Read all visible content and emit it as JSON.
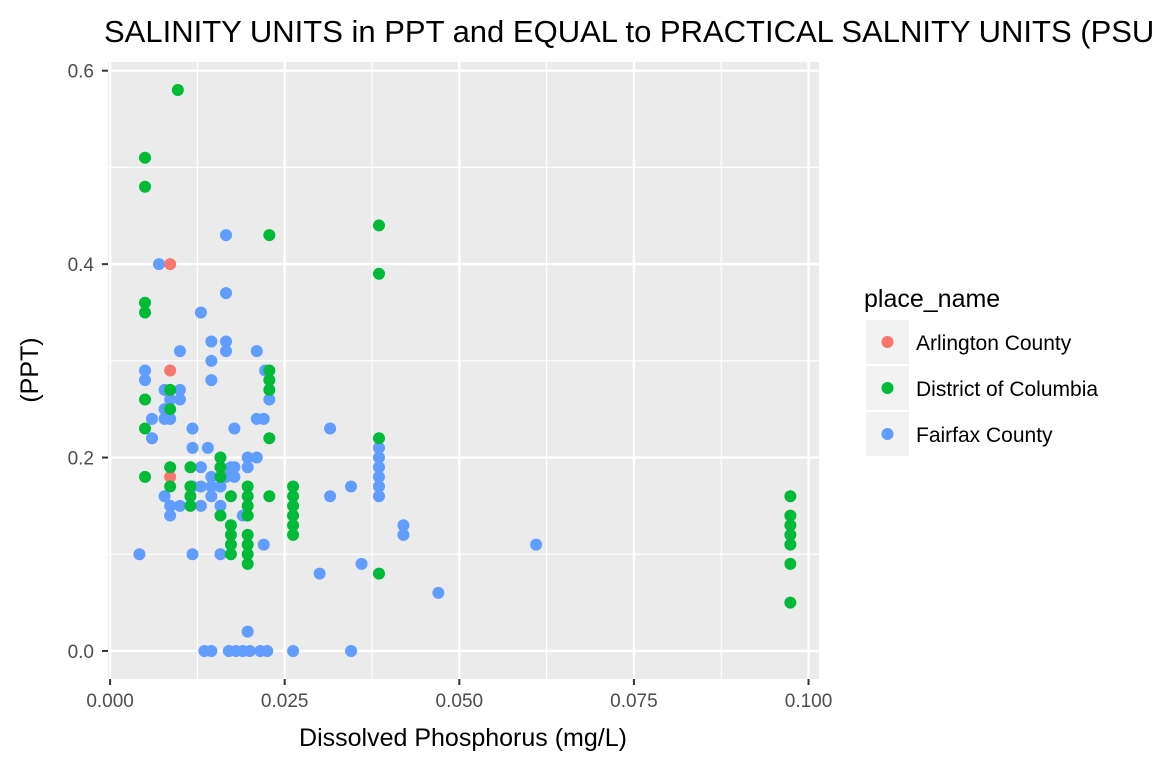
{
  "chart_data": {
    "type": "scatter",
    "title": "SALINITY UNITS in PPT and EQUAL to PRACTICAL SALNITY UNITS (PSU)",
    "xlabel": "Dissolved Phosphorus (mg/L)",
    "ylabel": "(PPT)",
    "xlim": [
      -0.0003,
      0.1015
    ],
    "ylim": [
      -0.029,
      0.609
    ],
    "x_ticks": [
      0,
      0.025,
      0.05,
      0.075,
      0.1
    ],
    "x_tick_labels": [
      "0.000",
      "0.025",
      "0.050",
      "0.075",
      "0.100"
    ],
    "y_ticks": [
      0,
      0.2,
      0.4,
      0.6
    ],
    "y_tick_labels": [
      "0.0",
      "0.2",
      "0.4",
      "0.6"
    ],
    "grid": true,
    "legend": {
      "title": "place_name",
      "position": "right"
    },
    "series": [
      {
        "name": "Arlington County",
        "color": "#F8766D",
        "points": [
          [
            0.0086,
            0.4
          ],
          [
            0.0086,
            0.29
          ],
          [
            0.0086,
            0.18
          ]
        ]
      },
      {
        "name": "District of Columbia",
        "color": "#00BA38",
        "points": [
          [
            0.0097,
            0.58
          ],
          [
            0.005,
            0.51
          ],
          [
            0.005,
            0.48
          ],
          [
            0.005,
            0.36
          ],
          [
            0.005,
            0.35
          ],
          [
            0.005,
            0.26
          ],
          [
            0.005,
            0.23
          ],
          [
            0.005,
            0.18
          ],
          [
            0.0086,
            0.27
          ],
          [
            0.0086,
            0.25
          ],
          [
            0.0086,
            0.19
          ],
          [
            0.0086,
            0.17
          ],
          [
            0.0115,
            0.19
          ],
          [
            0.0115,
            0.17
          ],
          [
            0.0115,
            0.16
          ],
          [
            0.0115,
            0.15
          ],
          [
            0.0158,
            0.2
          ],
          [
            0.0158,
            0.19
          ],
          [
            0.0158,
            0.18
          ],
          [
            0.0158,
            0.14
          ],
          [
            0.0173,
            0.16
          ],
          [
            0.0173,
            0.13
          ],
          [
            0.0173,
            0.12
          ],
          [
            0.0173,
            0.11
          ],
          [
            0.0173,
            0.1
          ],
          [
            0.0197,
            0.17
          ],
          [
            0.0197,
            0.16
          ],
          [
            0.0197,
            0.15
          ],
          [
            0.0197,
            0.14
          ],
          [
            0.0197,
            0.12
          ],
          [
            0.0197,
            0.11
          ],
          [
            0.0197,
            0.1
          ],
          [
            0.0197,
            0.09
          ],
          [
            0.0228,
            0.43
          ],
          [
            0.0228,
            0.29
          ],
          [
            0.0228,
            0.28
          ],
          [
            0.0228,
            0.27
          ],
          [
            0.0228,
            0.22
          ],
          [
            0.0228,
            0.16
          ],
          [
            0.0262,
            0.17
          ],
          [
            0.0262,
            0.16
          ],
          [
            0.0262,
            0.15
          ],
          [
            0.0262,
            0.14
          ],
          [
            0.0262,
            0.13
          ],
          [
            0.0262,
            0.12
          ],
          [
            0.0385,
            0.44
          ],
          [
            0.0385,
            0.39
          ],
          [
            0.0385,
            0.22
          ],
          [
            0.0385,
            0.08
          ],
          [
            0.0974,
            0.16
          ],
          [
            0.0974,
            0.14
          ],
          [
            0.0974,
            0.13
          ],
          [
            0.0974,
            0.12
          ],
          [
            0.0974,
            0.11
          ],
          [
            0.0974,
            0.09
          ],
          [
            0.0974,
            0.05
          ]
        ]
      },
      {
        "name": "Fairfax County",
        "color": "#619CFF",
        "points": [
          [
            0.0042,
            0.1
          ],
          [
            0.005,
            0.29
          ],
          [
            0.005,
            0.28
          ],
          [
            0.006,
            0.24
          ],
          [
            0.006,
            0.22
          ],
          [
            0.007,
            0.4
          ],
          [
            0.0078,
            0.27
          ],
          [
            0.0078,
            0.25
          ],
          [
            0.0078,
            0.24
          ],
          [
            0.0078,
            0.16
          ],
          [
            0.0086,
            0.26
          ],
          [
            0.0086,
            0.24
          ],
          [
            0.0086,
            0.15
          ],
          [
            0.0086,
            0.14
          ],
          [
            0.01,
            0.31
          ],
          [
            0.01,
            0.27
          ],
          [
            0.01,
            0.26
          ],
          [
            0.01,
            0.15
          ],
          [
            0.0118,
            0.23
          ],
          [
            0.0118,
            0.21
          ],
          [
            0.0118,
            0.17
          ],
          [
            0.0118,
            0.1
          ],
          [
            0.013,
            0.35
          ],
          [
            0.013,
            0.19
          ],
          [
            0.013,
            0.17
          ],
          [
            0.013,
            0.15
          ],
          [
            0.0135,
            0.0
          ],
          [
            0.014,
            0.21
          ],
          [
            0.0145,
            0.32
          ],
          [
            0.0145,
            0.3
          ],
          [
            0.0145,
            0.28
          ],
          [
            0.0145,
            0.18
          ],
          [
            0.0145,
            0.17
          ],
          [
            0.0145,
            0.16
          ],
          [
            0.0145,
            0.0
          ],
          [
            0.0158,
            0.17
          ],
          [
            0.0158,
            0.15
          ],
          [
            0.0158,
            0.1
          ],
          [
            0.0166,
            0.43
          ],
          [
            0.0166,
            0.37
          ],
          [
            0.0166,
            0.32
          ],
          [
            0.0166,
            0.31
          ],
          [
            0.0166,
            0.18
          ],
          [
            0.0173,
            0.19
          ],
          [
            0.0178,
            0.23
          ],
          [
            0.0178,
            0.19
          ],
          [
            0.0178,
            0.18
          ],
          [
            0.017,
            0.0
          ],
          [
            0.018,
            0.0
          ],
          [
            0.019,
            0.0
          ],
          [
            0.02,
            0.0
          ],
          [
            0.0215,
            0.0
          ],
          [
            0.0225,
            0.0
          ],
          [
            0.019,
            0.14
          ],
          [
            0.0197,
            0.2
          ],
          [
            0.0197,
            0.19
          ],
          [
            0.0197,
            0.02
          ],
          [
            0.021,
            0.31
          ],
          [
            0.021,
            0.24
          ],
          [
            0.021,
            0.2
          ],
          [
            0.022,
            0.24
          ],
          [
            0.022,
            0.11
          ],
          [
            0.0228,
            0.26
          ],
          [
            0.0222,
            0.29
          ],
          [
            0.0262,
            0.0
          ],
          [
            0.03,
            0.08
          ],
          [
            0.0315,
            0.23
          ],
          [
            0.0315,
            0.16
          ],
          [
            0.0345,
            0.17
          ],
          [
            0.0345,
            0.0
          ],
          [
            0.036,
            0.09
          ],
          [
            0.0385,
            0.21
          ],
          [
            0.0385,
            0.2
          ],
          [
            0.0385,
            0.19
          ],
          [
            0.0385,
            0.18
          ],
          [
            0.0385,
            0.17
          ],
          [
            0.0385,
            0.16
          ],
          [
            0.042,
            0.13
          ],
          [
            0.042,
            0.12
          ],
          [
            0.047,
            0.06
          ],
          [
            0.061,
            0.11
          ]
        ]
      }
    ]
  }
}
